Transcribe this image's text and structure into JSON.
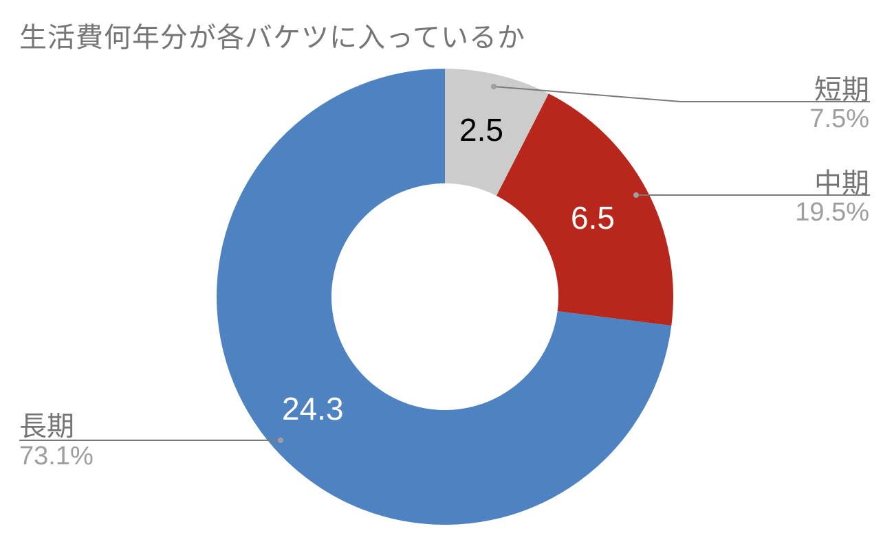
{
  "chart_data": {
    "type": "pie",
    "subtype": "donut",
    "title": "生活費何年分が各バケツに入っているか",
    "categories": [
      "短期",
      "中期",
      "長期"
    ],
    "values": [
      2.5,
      6.5,
      24.3
    ],
    "percentages": [
      "7.5%",
      "19.5%",
      "73.1%"
    ],
    "colors": [
      "#cccccc",
      "#b8271b",
      "#4e82c1"
    ],
    "value_label_colors": [
      "#000000",
      "#ffffff",
      "#ffffff"
    ],
    "legend": "callout labels"
  },
  "labels": {
    "short": {
      "name": "短期",
      "pct": "7.5%",
      "value": "2.5"
    },
    "mid": {
      "name": "中期",
      "pct": "19.5%",
      "value": "6.5"
    },
    "long": {
      "name": "長期",
      "pct": "73.1%",
      "value": "24.3"
    }
  }
}
